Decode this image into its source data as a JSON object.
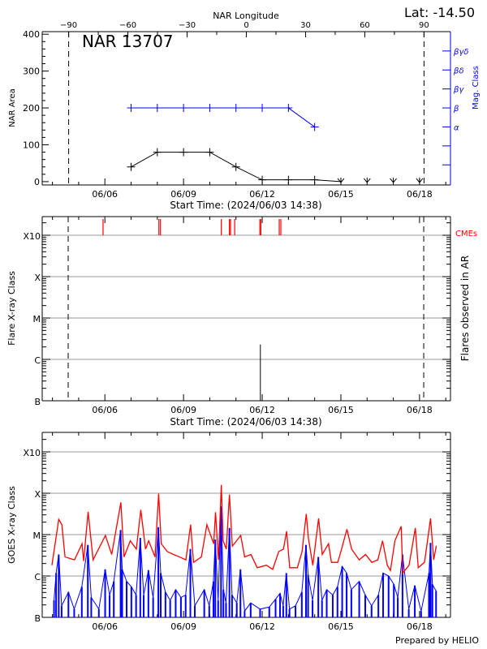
{
  "chart_data": [
    {
      "type": "line",
      "title": "NAR 13707",
      "lat_label": "Lat: -14.50",
      "xlabel": "Start Time: (2024/06/03 14:38)",
      "ylabel": "NAR Area",
      "top_axis_label": "NAR Longitude",
      "right_axis_label": "Mag. Class",
      "x_start_day": 3.6097,
      "x_end_day": 19.18,
      "x_ticks": [
        {
          "day": 6,
          "label": "06/06"
        },
        {
          "day": 9,
          "label": "06/09"
        },
        {
          "day": 12,
          "label": "06/12"
        },
        {
          "day": 15,
          "label": "06/15"
        },
        {
          "day": 18,
          "label": "06/18"
        }
      ],
      "ylim": [
        -9,
        407
      ],
      "y_ticks": [
        0,
        100,
        200,
        300,
        400
      ],
      "lon_range": [
        -103.4,
        103.4
      ],
      "lon_ticks": [
        -90,
        -60,
        -30,
        0,
        30,
        60,
        90
      ],
      "limb_longitudes": [
        -90,
        90
      ],
      "mag_class_ticks": [
        "",
        "",
        "α",
        "β",
        "βγ",
        "βδ",
        "βγδ"
      ],
      "area_series": {
        "name": "NAR Area",
        "color": "#000000",
        "days": [
          7,
          8,
          9,
          10,
          11,
          12,
          13,
          14,
          15,
          16,
          17,
          18
        ],
        "values": [
          40,
          80,
          80,
          80,
          40,
          5,
          5,
          5,
          0,
          0,
          0,
          0
        ]
      },
      "mag_series": {
        "name": "Mag. Class",
        "color": "#0000ff",
        "days": [
          7,
          8,
          9,
          10,
          11,
          12,
          13,
          14
        ],
        "classes": [
          "β",
          "β",
          "β",
          "β",
          "β",
          "β",
          "β",
          "α"
        ]
      }
    },
    {
      "type": "bar",
      "xlabel": "Start Time: (2024/06/03 14:38)",
      "ylabel": "Flare X-ray Class",
      "right_label": "Flares observed in AR",
      "cme_label": "CMEs",
      "cme_color": "#ff0000",
      "x_ticks": [
        {
          "day": 6,
          "label": "06/06"
        },
        {
          "day": 9,
          "label": "06/09"
        },
        {
          "day": 12,
          "label": "06/12"
        },
        {
          "day": 15,
          "label": "06/15"
        },
        {
          "day": 18,
          "label": "06/18"
        }
      ],
      "y_class_ticks": [
        "B",
        "C",
        "M",
        "X",
        "X10"
      ],
      "y_log10_range": [
        -7,
        -2.55
      ],
      "limb_days": [
        4.6,
        18.16
      ],
      "cme_days": [
        5.93,
        8.06,
        8.12,
        10.44,
        10.75,
        10.79,
        10.95,
        11.91,
        11.95,
        12.65,
        12.71
      ],
      "flares": [
        {
          "day": 11.93,
          "log10_flux": -5.64,
          "class": "C2.3"
        }
      ]
    },
    {
      "type": "line",
      "ylabel": "GOES X-ray Class",
      "footer": "Prepared by HELIO",
      "x_ticks": [
        {
          "day": 6,
          "label": "06/06"
        },
        {
          "day": 9,
          "label": "06/09"
        },
        {
          "day": 12,
          "label": "06/12"
        },
        {
          "day": 15,
          "label": "06/15"
        },
        {
          "day": 18,
          "label": "06/18"
        }
      ],
      "y_class_ticks": [
        "B",
        "C",
        "M",
        "X",
        "X10"
      ],
      "y_log10_range": [
        -7,
        -2.53
      ],
      "series": [
        {
          "name": "GOES long channel",
          "color": "#ff0000",
          "days": [
            3.98,
            4.24,
            4.36,
            4.48,
            4.84,
            5.13,
            5.19,
            5.36,
            5.55,
            6.02,
            6.26,
            6.61,
            6.73,
            6.97,
            7.2,
            7.37,
            7.55,
            7.67,
            7.91,
            8.05,
            8.15,
            8.38,
            8.62,
            8.85,
            9.09,
            9.27,
            9.38,
            9.68,
            9.89,
            10.15,
            10.22,
            10.33,
            10.44,
            10.51,
            10.63,
            10.75,
            10.86,
            11.18,
            11.33,
            11.57,
            11.81,
            12.16,
            12.4,
            12.63,
            12.81,
            12.93,
            13.05,
            13.34,
            13.52,
            13.68,
            13.76,
            13.93,
            14.15,
            14.29,
            14.53,
            14.64,
            14.88,
            15.0,
            15.23,
            15.41,
            15.7,
            15.94,
            16.18,
            16.41,
            16.59,
            16.77,
            16.89,
            17.06,
            17.3,
            17.36,
            17.6,
            17.84,
            17.95,
            18.19,
            18.42,
            18.54,
            18.64
          ],
          "log10_flux": [
            -5.74,
            -4.63,
            -4.76,
            -5.54,
            -5.61,
            -5.22,
            -5.64,
            -4.45,
            -5.61,
            -5.02,
            -5.48,
            -4.22,
            -5.54,
            -5.15,
            -5.35,
            -4.4,
            -5.35,
            -5.15,
            -5.54,
            -4.01,
            -5.22,
            -5.41,
            -5.48,
            -5.54,
            -5.61,
            -4.76,
            -5.67,
            -5.54,
            -4.76,
            -5.22,
            -4.46,
            -5.61,
            -3.8,
            -5.15,
            -5.35,
            -4.03,
            -5.28,
            -5.02,
            -5.54,
            -5.48,
            -5.8,
            -5.74,
            -5.84,
            -5.41,
            -5.35,
            -4.92,
            -5.8,
            -5.8,
            -5.41,
            -4.5,
            -5.08,
            -5.74,
            -4.61,
            -5.48,
            -5.22,
            -5.67,
            -5.67,
            -5.41,
            -4.87,
            -5.35,
            -5.61,
            -5.48,
            -5.67,
            -5.61,
            -5.15,
            -5.74,
            -5.87,
            -5.15,
            -4.8,
            -5.93,
            -5.74,
            -4.84,
            -5.8,
            -5.67,
            -4.61,
            -5.61,
            -5.27
          ]
        },
        {
          "name": "GOES short channel",
          "color": "#0000ff",
          "days": [
            4.06,
            4.14,
            4.24,
            4.35,
            4.61,
            4.83,
            5.12,
            5.35,
            5.48,
            5.77,
            6.01,
            6.18,
            6.34,
            6.6,
            6.66,
            6.83,
            7.01,
            7.19,
            7.35,
            7.48,
            7.66,
            7.84,
            8.04,
            8.13,
            8.31,
            8.49,
            8.7,
            8.9,
            9.08,
            9.26,
            9.43,
            9.79,
            9.98,
            10.14,
            10.21,
            10.32,
            10.43,
            10.52,
            10.62,
            10.75,
            10.85,
            11.03,
            11.17,
            11.33,
            11.56,
            11.92,
            12.27,
            12.51,
            12.68,
            12.8,
            12.92,
            13.04,
            13.27,
            13.51,
            13.67,
            13.75,
            13.92,
            14.14,
            14.28,
            14.46,
            14.69,
            14.87,
            15.05,
            15.22,
            15.4,
            15.7,
            15.93,
            16.17,
            16.43,
            16.61,
            16.82,
            17.02,
            17.17,
            17.35,
            17.59,
            17.82,
            18.06,
            18.36,
            18.42,
            18.49,
            18.63
          ],
          "log10_flux": [
            -6.59,
            -5.93,
            -5.48,
            -6.72,
            -6.39,
            -6.8,
            -6.26,
            -5.25,
            -6.52,
            -6.8,
            -5.84,
            -6.46,
            -6.13,
            -4.89,
            -5.84,
            -6.13,
            -6.26,
            -6.46,
            -5.08,
            -6.46,
            -5.86,
            -6.52,
            -4.82,
            -5.93,
            -6.39,
            -6.59,
            -6.33,
            -6.52,
            -6.46,
            -5.35,
            -6.72,
            -6.33,
            -6.72,
            -6.13,
            -5.12,
            -6.59,
            -4.32,
            -6.33,
            -6.65,
            -4.84,
            -6.46,
            -6.65,
            -5.84,
            -6.85,
            -6.65,
            -6.8,
            -6.75,
            -6.56,
            -6.42,
            -6.72,
            -5.93,
            -6.8,
            -6.72,
            -6.39,
            -5.25,
            -5.97,
            -6.59,
            -5.54,
            -6.59,
            -6.33,
            -6.46,
            -6.26,
            -5.77,
            -5.93,
            -6.33,
            -6.13,
            -6.46,
            -6.72,
            -6.46,
            -5.93,
            -6.0,
            -6.2,
            -6.52,
            -5.48,
            -6.8,
            -6.23,
            -6.85,
            -5.93,
            -5.2,
            -6.2,
            -6.36
          ]
        }
      ]
    }
  ]
}
